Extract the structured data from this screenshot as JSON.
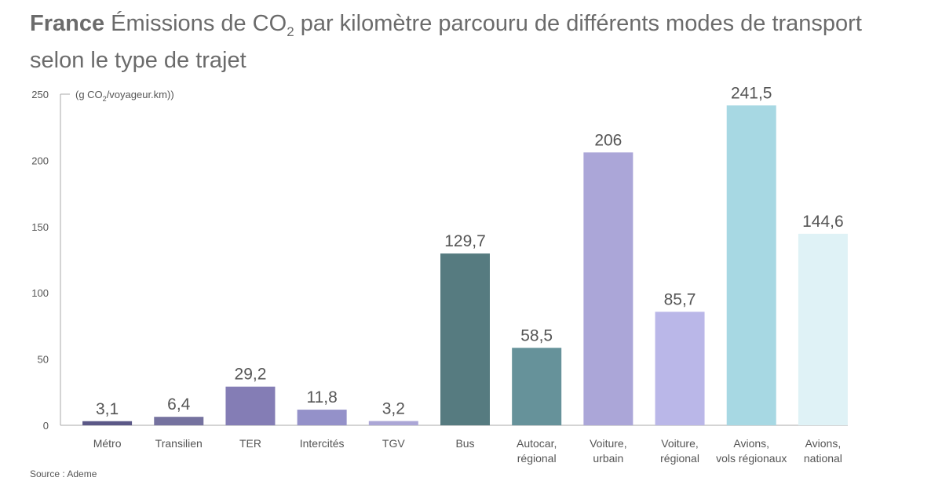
{
  "chart_data": {
    "type": "bar",
    "title_bold": "France",
    "title_pre": "Émissions de CO",
    "title_sub": "2",
    "title_post": " par kilomètre parcouru de différents modes de transport selon le type de trajet",
    "ylabel_pre": "(g CO",
    "ylabel_sub": "2",
    "ylabel_post": "/voyageur.km))",
    "ylim": [
      0,
      250
    ],
    "yticks": [
      0,
      50,
      100,
      150,
      200,
      250
    ],
    "grid": false,
    "categories": [
      [
        "Métro"
      ],
      [
        "Transilien"
      ],
      [
        "TER"
      ],
      [
        "Intercités"
      ],
      [
        "TGV"
      ],
      [
        "Bus"
      ],
      [
        "Autocar,",
        "régional"
      ],
      [
        "Voiture,",
        "urbain"
      ],
      [
        "Voiture,",
        "régional"
      ],
      [
        "Avions,",
        "vols régionaux"
      ],
      [
        "Avions,",
        "national"
      ]
    ],
    "values": [
      3.1,
      6.4,
      29.2,
      11.8,
      3.2,
      129.7,
      58.5,
      206,
      85.7,
      241.5,
      144.6
    ],
    "labels": [
      "3,1",
      "6,4",
      "29,2",
      "11,8",
      "3,2",
      "129,7",
      "58,5",
      "206",
      "85,7",
      "241,5",
      "144,6"
    ],
    "colors": [
      "#5b5887",
      "#75729f",
      "#847db5",
      "#9491c9",
      "#aba6d6",
      "#567b80",
      "#66929a",
      "#aba6d8",
      "#bab7e8",
      "#a7d8e3",
      "#dff2f6"
    ],
    "source": "Source : Ademe"
  }
}
